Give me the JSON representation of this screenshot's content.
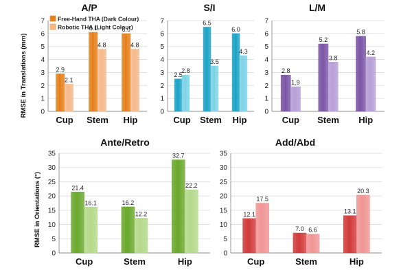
{
  "colors": {
    "orange": [
      "#e5801c",
      "#f7b98a"
    ],
    "teal": [
      "#1ba3c6",
      "#7fd3e6"
    ],
    "purple": [
      "#7b55a6",
      "#b79fd6"
    ],
    "green": [
      "#6aa82c",
      "#b4d98a"
    ],
    "red": [
      "#d23a3a",
      "#f09595"
    ]
  },
  "y_labels": {
    "top": "RMSE in Translations (mm)",
    "bottom": "RMSE in Orientations (°)"
  },
  "chart_data": [
    {
      "type": "bar",
      "title": "A/P",
      "categories": [
        "Cup",
        "Stem",
        "Hip"
      ],
      "ylim": [
        0,
        7
      ],
      "yticks": [
        0,
        1,
        2,
        3,
        4,
        5,
        6,
        7
      ],
      "grid": true,
      "legend": "top-left",
      "series": [
        {
          "name": "Free-Hand THA (Dark Colour)",
          "values": [
            2.9,
            6.1,
            6.0
          ],
          "labels": [
            "2.9",
            "6.1",
            "6.0"
          ]
        },
        {
          "name": "Robotic THA (Light Colour)",
          "values": [
            2.1,
            4.8,
            4.8
          ],
          "labels": [
            "2.1",
            "4.8",
            "4.8"
          ]
        }
      ]
    },
    {
      "type": "bar",
      "title": "S/I",
      "categories": [
        "Cup",
        "Stem",
        "Hip"
      ],
      "ylim": [
        0,
        7
      ],
      "yticks": [
        0,
        1,
        2,
        3,
        4,
        5,
        6,
        7
      ],
      "grid": true,
      "series": [
        {
          "values": [
            2.5,
            6.5,
            6.0
          ],
          "labels": [
            "2.5",
            "6.5",
            "6.0"
          ]
        },
        {
          "values": [
            2.8,
            3.5,
            4.3
          ],
          "labels": [
            "2.8",
            "3.5",
            "4.3"
          ]
        }
      ]
    },
    {
      "type": "bar",
      "title": "L/M",
      "categories": [
        "Cup",
        "Stem",
        "Hip"
      ],
      "ylim": [
        0,
        7
      ],
      "yticks": [
        0,
        1,
        2,
        3,
        4,
        5,
        6,
        7
      ],
      "grid": true,
      "series": [
        {
          "values": [
            2.8,
            5.2,
            5.8
          ],
          "labels": [
            "2.8",
            "5.2",
            "5.8"
          ]
        },
        {
          "values": [
            1.9,
            3.8,
            4.2
          ],
          "labels": [
            "1.9",
            "3.8",
            "4.2"
          ]
        }
      ]
    },
    {
      "type": "bar",
      "title": "Ante/Retro",
      "categories": [
        "Cup",
        "Stem",
        "Hip"
      ],
      "ylim": [
        0,
        35
      ],
      "yticks": [
        0,
        5,
        10,
        15,
        20,
        25,
        30,
        35
      ],
      "grid": true,
      "series": [
        {
          "values": [
            21.4,
            16.2,
            32.7
          ],
          "labels": [
            "21.4",
            "16.2",
            "32.7"
          ]
        },
        {
          "values": [
            16.1,
            12.2,
            22.2
          ],
          "labels": [
            "16.1",
            "12.2",
            "22.2"
          ]
        }
      ]
    },
    {
      "type": "bar",
      "title": "Add/Abd",
      "categories": [
        "Cup",
        "Stem",
        "Hip"
      ],
      "ylim": [
        0,
        35
      ],
      "yticks": [
        0,
        5,
        10,
        15,
        20,
        25,
        30,
        35
      ],
      "grid": true,
      "series": [
        {
          "values": [
            12.1,
            7.0,
            13.1
          ],
          "labels": [
            "12.1",
            "7.0",
            "13.1"
          ]
        },
        {
          "values": [
            17.5,
            6.6,
            20.3
          ],
          "labels": [
            "17.5",
            "6.6",
            "20.3"
          ]
        }
      ]
    }
  ]
}
